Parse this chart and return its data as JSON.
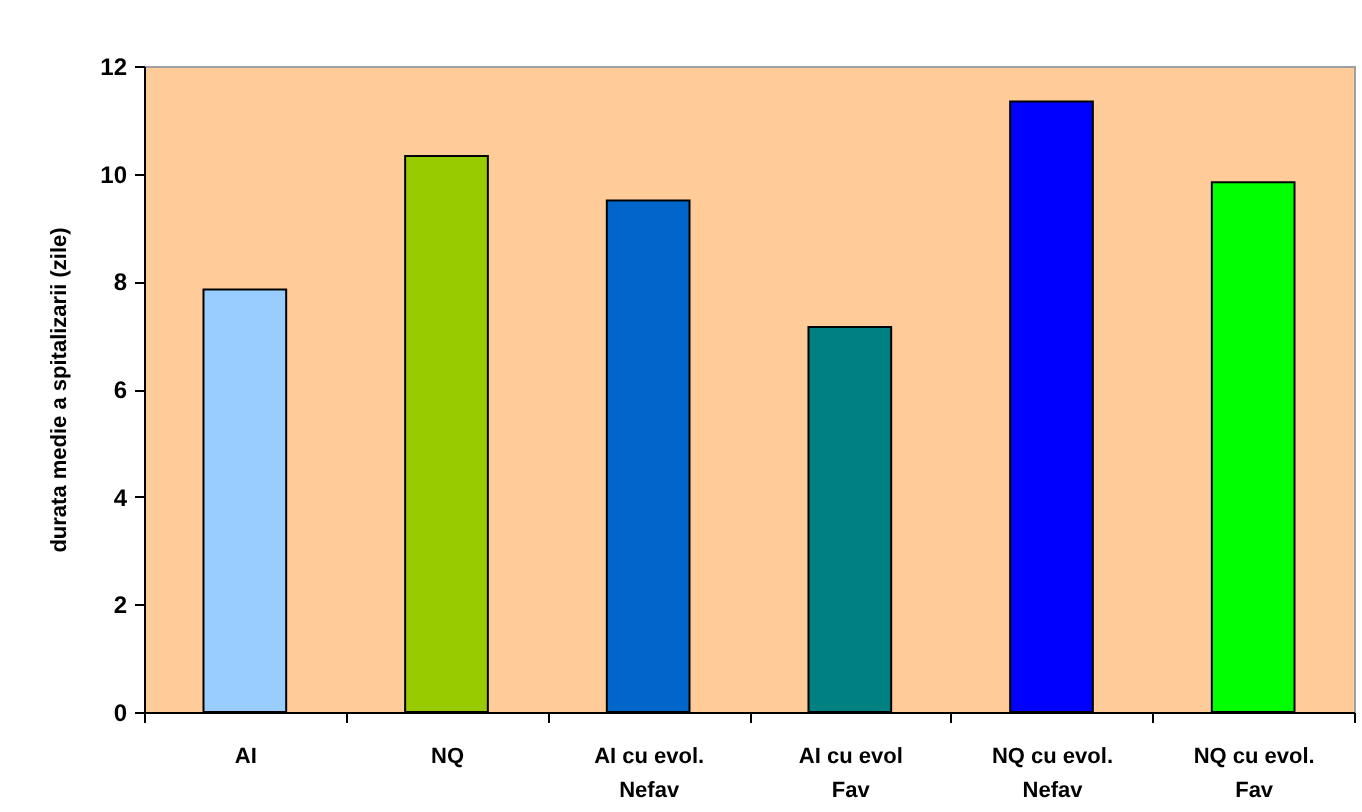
{
  "chart_data": {
    "type": "bar",
    "ylabel": "durata medie a spitalizarii (zile)",
    "categories": [
      "AI",
      "NQ",
      "AI cu evol. Nefav",
      "AI cu evol Fav",
      "NQ cu evol. Nefav",
      "NQ cu evol. Fav"
    ],
    "values": [
      7.85,
      10.33,
      9.5,
      7.15,
      11.34,
      9.84
    ],
    "colors": [
      "#99ccff",
      "#99cc00",
      "#0066cc",
      "#008080",
      "#0000ff",
      "#00ff00"
    ],
    "ylim": [
      0,
      12
    ],
    "yticks": [
      0,
      2,
      4,
      6,
      8,
      10,
      12
    ],
    "grid": false
  }
}
